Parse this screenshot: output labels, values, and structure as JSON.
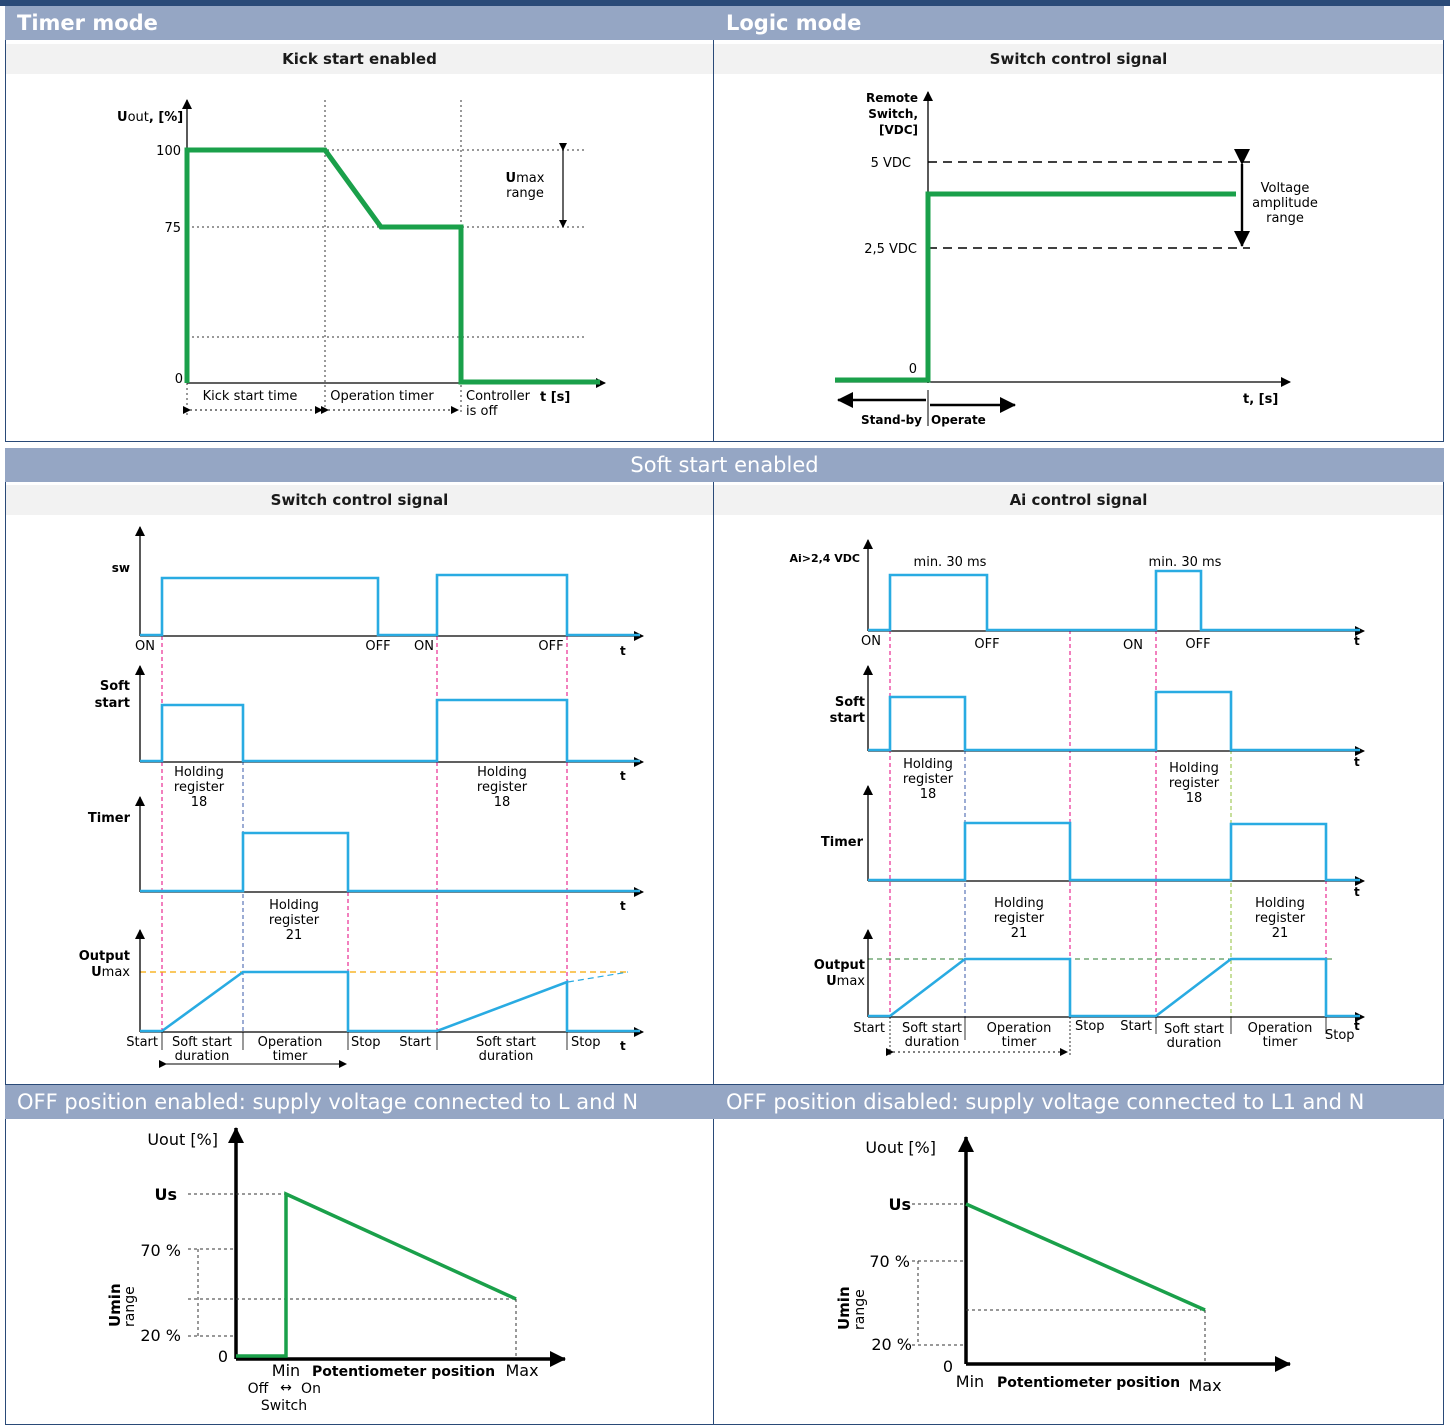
{
  "headers": {
    "timer_mode": "Timer mode",
    "logic_mode": "Logic mode",
    "soft_start_enabled": "Soft start enabled",
    "off_enabled": "OFF position enabled: supply voltage connected to L and N",
    "off_disabled": "OFF position disabled: supply voltage connected to L1 and N"
  },
  "subtitles": {
    "kick_start": "Kick start enabled",
    "switch_control_1": "Switch control signal",
    "switch_control_2": "Switch control signal",
    "ai_control": "Ai control signal"
  },
  "kick": {
    "ylabel_b": "U",
    "ylabel_n": "out",
    "ylabel_u": ", [%]",
    "y100": "100",
    "y75": "75",
    "y0": "0",
    "umax_b": "U",
    "umax_n": "max",
    "umax_range": "range",
    "seg1": "Kick start time",
    "seg2": "Operation timer",
    "seg3a": "Controller",
    "seg3b": "is off",
    "xlabel": "t [s]"
  },
  "logic": {
    "ylabel1": "Remote",
    "ylabel2": "Switch,",
    "ylabel3": "[VDC]",
    "v5": "5 VDC",
    "v25": "2,5 VDC",
    "v0": "0",
    "amp1": "Voltage",
    "amp2": "amplitude",
    "amp3": "range",
    "standby": "Stand-by",
    "operate": "Operate",
    "xlabel": "t, [s]"
  },
  "sw": {
    "sw_label": "sw",
    "on1": "ON",
    "off1": "OFF",
    "on2": "ON",
    "off2": "OFF",
    "t": "t",
    "soft1": "Soft",
    "soft2": "start",
    "hr18a_1": "Holding",
    "hr18a_2": "register",
    "hr18a_3": "18",
    "hr18b_1": "Holding",
    "hr18b_2": "register",
    "hr18b_3": "18",
    "timer": "Timer",
    "hr21_1": "Holding",
    "hr21_2": "register",
    "hr21_3": "21",
    "out1": "Output",
    "out_b": "U",
    "out_n": "max",
    "start1": "Start",
    "ssd1a": "Soft start",
    "ssd1b": "duration",
    "opt1a": "Operation",
    "opt1b": "timer",
    "stop1": "Stop",
    "start2": "Start",
    "ssd2a": "Soft start",
    "ssd2b": "duration",
    "stop2": "Stop"
  },
  "ai": {
    "ai_label": "Ai>2,4 VDC",
    "min30a": "min. 30 ms",
    "min30b": "min. 30 ms",
    "on1": "ON",
    "off1": "OFF",
    "on2": "ON",
    "off2": "OFF",
    "t": "t",
    "soft1": "Soft",
    "soft2": "start",
    "hr18a_1": "Holding",
    "hr18a_2": "register",
    "hr18a_3": "18",
    "hr18b_1": "Holding",
    "hr18b_2": "register",
    "hr18b_3": "18",
    "timer": "Timer",
    "hr21a_1": "Holding",
    "hr21a_2": "register",
    "hr21a_3": "21",
    "hr21b_1": "Holding",
    "hr21b_2": "register",
    "hr21b_3": "21",
    "out1": "Output",
    "out_b": "U",
    "out_n": "max",
    "start1": "Start",
    "ssd1a": "Soft start",
    "ssd1b": "duration",
    "opt1a": "Operation",
    "opt1b": "timer",
    "stop1": "Stop",
    "start2": "Start",
    "ssd2a": "Soft start",
    "ssd2b": "duration",
    "opt2a": "Operation",
    "opt2b": "timer",
    "stop2": "Stop"
  },
  "pot_on": {
    "ylabel": "Uout [%]",
    "us": "Us",
    "p70": "70 %",
    "p20": "20 %",
    "zero": "0",
    "umin": "Umin",
    "range": "range",
    "min": "Min",
    "pos": "Potentiometer position",
    "max": "Max",
    "off": "Off",
    "arrow": "↔",
    "on": "On",
    "switch": "Switch"
  },
  "pot_off": {
    "ylabel": "Uout [%]",
    "us": "Us",
    "p70": "70 %",
    "p20": "20 %",
    "zero": "0",
    "umin": "Umin",
    "range": "range",
    "min": "Min",
    "pos": "Potentiometer position",
    "max": "Max"
  },
  "colors": {
    "header": "#95a6c4",
    "border": "#2a4a78",
    "green": "#1aa04a",
    "blue": "#29abe2",
    "pink": "#e6007e",
    "orange": "#f7a600",
    "darkgreen": "#2e7d32"
  }
}
